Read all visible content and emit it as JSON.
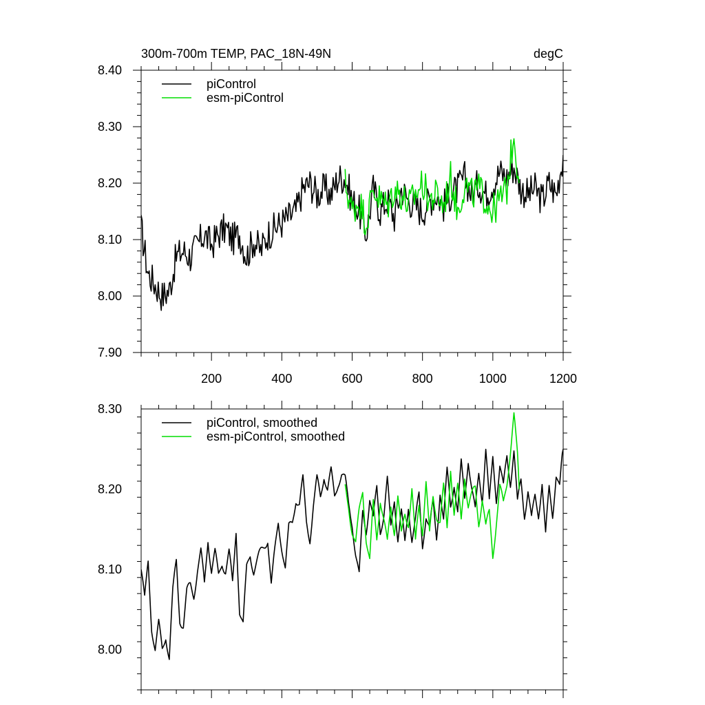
{
  "figure": {
    "title_left": "300m-700m TEMP, PAC_18N-49N",
    "title_right": "degC"
  },
  "chart_data": [
    {
      "type": "line",
      "title": "300m-700m TEMP, PAC_18N-49N",
      "units": "degC",
      "xlim": [
        0,
        1200
      ],
      "ylim": [
        7.9,
        8.4
      ],
      "x_ticks": [
        200,
        400,
        600,
        800,
        1000,
        1200
      ],
      "x_tick_labels": [
        "200",
        "400",
        "600",
        "800",
        "1000",
        "1200"
      ],
      "y_ticks": [
        7.9,
        8.0,
        8.1,
        8.2,
        8.3,
        8.4
      ],
      "y_tick_labels": [
        "7.90",
        "8.00",
        "8.10",
        "8.20",
        "8.30",
        "8.40"
      ],
      "legend_position": "top-left",
      "series": [
        {
          "name": "piControl",
          "color": "#000000",
          "x": [
            0,
            20,
            40,
            60,
            80,
            100,
            120,
            140,
            160,
            180,
            200,
            220,
            240,
            260,
            280,
            300,
            320,
            340,
            360,
            380,
            400,
            420,
            440,
            460,
            480,
            500,
            520,
            540,
            560,
            580,
            600,
            620,
            640,
            660,
            680,
            700,
            720,
            740,
            760,
            780,
            800,
            820,
            840,
            860,
            880,
            900,
            920,
            940,
            960,
            980,
            1000,
            1020,
            1040,
            1060,
            1080,
            1100,
            1120,
            1140,
            1160,
            1180,
            1200
          ],
          "values": [
            8.12,
            8.04,
            8.02,
            8.0,
            8.01,
            8.07,
            8.08,
            8.07,
            8.09,
            8.11,
            8.09,
            8.11,
            8.12,
            8.1,
            8.11,
            8.07,
            8.1,
            8.08,
            8.11,
            8.12,
            8.13,
            8.14,
            8.15,
            8.19,
            8.2,
            8.18,
            8.19,
            8.18,
            8.21,
            8.21,
            8.17,
            8.15,
            8.11,
            8.19,
            8.15,
            8.17,
            8.14,
            8.19,
            8.17,
            8.16,
            8.15,
            8.17,
            8.18,
            8.16,
            8.18,
            8.19,
            8.21,
            8.18,
            8.2,
            8.18,
            8.2,
            8.22,
            8.21,
            8.23,
            8.19,
            8.18,
            8.19,
            8.17,
            8.2,
            8.18,
            8.25
          ]
        },
        {
          "name": "esm-piControl",
          "color": "#00dd00",
          "x": [
            580,
            600,
            620,
            640,
            660,
            680,
            700,
            720,
            740,
            760,
            780,
            800,
            820,
            840,
            860,
            880,
            900,
            920,
            940,
            960,
            980,
            1000,
            1020,
            1040,
            1060,
            1075
          ],
          "values": [
            8.2,
            8.15,
            8.17,
            8.13,
            8.19,
            8.17,
            8.16,
            8.19,
            8.18,
            8.16,
            8.18,
            8.2,
            8.17,
            8.18,
            8.16,
            8.21,
            8.15,
            8.2,
            8.18,
            8.19,
            8.17,
            8.15,
            8.17,
            8.19,
            8.29,
            8.2
          ]
        }
      ]
    },
    {
      "type": "line",
      "title": "",
      "units": "degC",
      "xlim": [
        0,
        1200
      ],
      "ylim": [
        7.95,
        8.3
      ],
      "x_ticks": [
        200,
        400,
        600,
        800,
        1000,
        1200
      ],
      "x_tick_labels": [],
      "y_ticks": [
        8.0,
        8.1,
        8.2,
        8.3
      ],
      "y_tick_labels": [
        "8.00",
        "8.10",
        "8.20",
        "8.30"
      ],
      "legend_position": "top-left",
      "series": [
        {
          "name": "piControl, smoothed",
          "color": "#000000",
          "x": [
            0,
            10,
            20,
            30,
            40,
            50,
            60,
            70,
            80,
            90,
            100,
            110,
            120,
            130,
            140,
            150,
            160,
            170,
            180,
            190,
            200,
            210,
            220,
            230,
            240,
            250,
            260,
            270,
            280,
            290,
            300,
            310,
            320,
            330,
            340,
            350,
            360,
            370,
            380,
            390,
            400,
            410,
            420,
            430,
            440,
            450,
            460,
            470,
            480,
            490,
            500,
            510,
            520,
            530,
            540,
            550,
            560,
            570,
            580,
            590,
            600,
            610,
            620,
            630,
            640,
            650,
            660,
            670,
            680,
            690,
            700,
            710,
            720,
            730,
            740,
            750,
            760,
            770,
            780,
            790,
            800,
            810,
            820,
            830,
            840,
            850,
            860,
            870,
            880,
            890,
            900,
            910,
            920,
            930,
            940,
            950,
            960,
            970,
            980,
            990,
            1000,
            1010,
            1020,
            1030,
            1040,
            1050,
            1060,
            1070,
            1080,
            1090,
            1100,
            1110,
            1120,
            1130,
            1140,
            1150,
            1160,
            1170,
            1180,
            1190,
            1200
          ],
          "values": [
            8.1,
            8.06,
            8.11,
            8.03,
            8.0,
            8.03,
            8.0,
            8.02,
            7.99,
            8.07,
            8.11,
            8.04,
            8.03,
            8.07,
            8.08,
            8.07,
            8.1,
            8.12,
            8.08,
            8.14,
            8.1,
            8.12,
            8.09,
            8.11,
            8.1,
            8.12,
            8.08,
            8.15,
            8.05,
            8.03,
            8.1,
            8.12,
            8.1,
            8.11,
            8.12,
            8.13,
            8.14,
            8.08,
            8.12,
            8.16,
            8.13,
            8.1,
            8.15,
            8.16,
            8.19,
            8.18,
            8.21,
            8.16,
            8.14,
            8.18,
            8.21,
            8.19,
            8.22,
            8.2,
            8.22,
            8.19,
            8.21,
            8.22,
            8.21,
            8.18,
            8.16,
            8.12,
            8.09,
            8.17,
            8.15,
            8.19,
            8.16,
            8.2,
            8.15,
            8.17,
            8.21,
            8.15,
            8.19,
            8.14,
            8.17,
            8.13,
            8.18,
            8.14,
            8.16,
            8.19,
            8.13,
            8.17,
            8.15,
            8.18,
            8.14,
            8.2,
            8.16,
            8.22,
            8.18,
            8.21,
            8.17,
            8.23,
            8.19,
            8.24,
            8.2,
            8.17,
            8.22,
            8.19,
            8.25,
            8.18,
            8.24,
            8.19,
            8.23,
            8.2,
            8.24,
            8.21,
            8.25,
            8.18,
            8.21,
            8.17,
            8.2,
            8.16,
            8.19,
            8.17,
            8.21,
            8.14,
            8.2,
            8.17,
            8.22,
            8.2,
            8.25
          ]
        },
        {
          "name": "esm-piControl, smoothed",
          "color": "#00dd00",
          "x": [
            580,
            590,
            600,
            610,
            620,
            630,
            640,
            650,
            660,
            670,
            680,
            690,
            700,
            710,
            720,
            730,
            740,
            750,
            760,
            770,
            780,
            790,
            800,
            810,
            820,
            830,
            840,
            850,
            860,
            870,
            880,
            890,
            900,
            910,
            920,
            930,
            940,
            950,
            960,
            970,
            980,
            990,
            1000,
            1010,
            1020,
            1030,
            1040,
            1050,
            1060,
            1070,
            1075
          ],
          "values": [
            8.2,
            8.18,
            8.15,
            8.13,
            8.17,
            8.2,
            8.14,
            8.11,
            8.18,
            8.14,
            8.19,
            8.16,
            8.13,
            8.18,
            8.15,
            8.19,
            8.14,
            8.17,
            8.16,
            8.2,
            8.13,
            8.18,
            8.15,
            8.21,
            8.14,
            8.19,
            8.17,
            8.16,
            8.2,
            8.15,
            8.23,
            8.17,
            8.2,
            8.16,
            8.22,
            8.18,
            8.19,
            8.2,
            8.16,
            8.19,
            8.15,
            8.17,
            8.12,
            8.16,
            8.2,
            8.18,
            8.21,
            8.25,
            8.29,
            8.24,
            8.2
          ]
        }
      ]
    }
  ],
  "legends": [
    {
      "items": [
        "piControl",
        "esm-piControl"
      ]
    },
    {
      "items": [
        "piControl, smoothed",
        "esm-piControl, smoothed"
      ]
    }
  ]
}
